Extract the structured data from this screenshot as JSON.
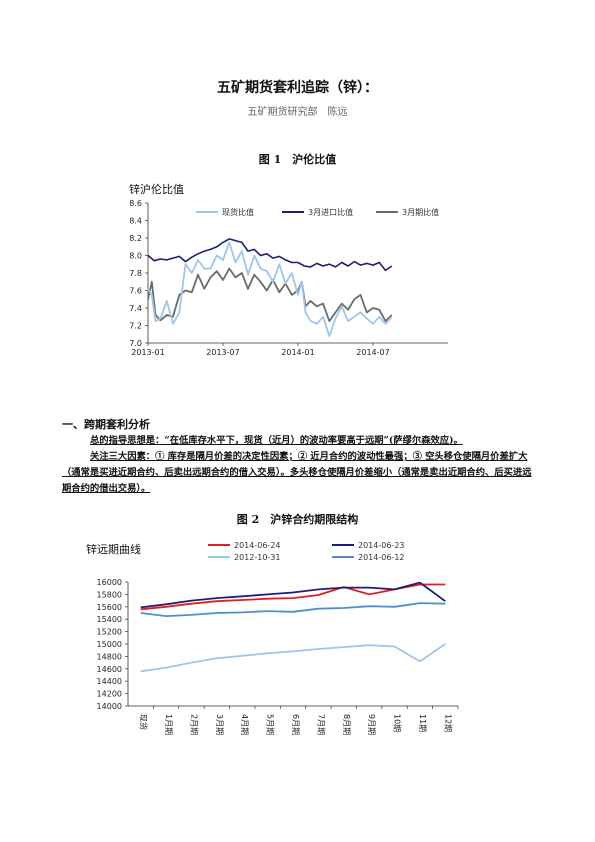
{
  "doc": {
    "title": "五矿期货套利追踪（锌）：",
    "author": "五矿期货研究部　陈远"
  },
  "figure1": {
    "caption": "图 1　沪伦比值",
    "chart_data": {
      "type": "line",
      "title": "锌沪伦比值",
      "xlabel": "",
      "ylabel": "",
      "ylim": [
        7.0,
        8.6
      ],
      "yticks": [
        "8.6",
        "8.4",
        "8.2",
        "8.0",
        "7.8",
        "7.6",
        "7.4",
        "7.2",
        "7.0"
      ],
      "xticks": [
        "2013-01",
        "2013-07",
        "2014-01",
        "2014-07"
      ],
      "xlim": [
        0,
        24
      ],
      "legend_position": "top",
      "grid": false,
      "series": [
        {
          "name": "现货比值",
          "color": "#9ec5ee",
          "x": [
            0,
            0.3,
            0.6,
            1,
            1.5,
            2,
            2.5,
            3,
            3.5,
            4,
            4.5,
            5,
            5.5,
            6,
            6.5,
            7,
            7.5,
            8,
            8.5,
            9,
            9.5,
            10,
            10.5,
            11,
            11.5,
            12,
            12.3,
            12.6,
            13,
            13.5,
            14,
            14.5,
            15,
            15.5,
            16,
            16.5,
            17,
            17.5,
            18,
            18.5,
            19,
            19.5
          ],
          "values": [
            7.62,
            7.55,
            7.25,
            7.28,
            7.48,
            7.22,
            7.35,
            7.9,
            7.8,
            7.95,
            7.85,
            7.85,
            8.0,
            7.95,
            8.15,
            7.92,
            8.05,
            7.78,
            8.0,
            7.85,
            7.82,
            7.7,
            7.9,
            7.68,
            7.8,
            7.55,
            7.7,
            7.35,
            7.25,
            7.22,
            7.3,
            7.08,
            7.28,
            7.42,
            7.25,
            7.3,
            7.35,
            7.28,
            7.22,
            7.3,
            7.22,
            7.3
          ]
        },
        {
          "name": "3月进口比值",
          "color": "#1b1f7a",
          "x": [
            0,
            0.5,
            1,
            1.5,
            2,
            2.5,
            3,
            3.5,
            4,
            4.5,
            5,
            5.5,
            6,
            6.5,
            7,
            7.5,
            8,
            8.5,
            9,
            9.5,
            10,
            10.5,
            11,
            11.5,
            12,
            12.5,
            13,
            13.5,
            14,
            14.5,
            15,
            15.5,
            16,
            16.5,
            17,
            17.5,
            18,
            18.5,
            19,
            19.5
          ],
          "values": [
            8.0,
            7.94,
            7.96,
            7.95,
            7.97,
            7.99,
            7.93,
            7.98,
            8.02,
            8.05,
            8.07,
            8.1,
            8.15,
            8.19,
            8.17,
            8.15,
            8.05,
            8.07,
            8.0,
            8.02,
            7.97,
            7.99,
            7.95,
            7.92,
            7.92,
            7.88,
            7.87,
            7.91,
            7.88,
            7.9,
            7.87,
            7.92,
            7.88,
            7.93,
            7.89,
            7.91,
            7.89,
            7.92,
            7.83,
            7.88
          ]
        },
        {
          "name": "3月期比值",
          "color": "#6b6b6b",
          "x": [
            0,
            0.3,
            0.6,
            1,
            1.5,
            2,
            2.5,
            3,
            3.5,
            4,
            4.5,
            5,
            5.5,
            6,
            6.5,
            7,
            7.5,
            8,
            8.5,
            9,
            9.5,
            10,
            10.5,
            11,
            11.5,
            12,
            12.3,
            12.6,
            13,
            13.5,
            14,
            14.5,
            15,
            15.5,
            16,
            16.5,
            17,
            17.5,
            18,
            18.5,
            19,
            19.5
          ],
          "values": [
            7.5,
            7.7,
            7.32,
            7.26,
            7.32,
            7.3,
            7.55,
            7.6,
            7.58,
            7.78,
            7.62,
            7.75,
            7.82,
            7.72,
            7.85,
            7.75,
            7.8,
            7.62,
            7.78,
            7.7,
            7.6,
            7.72,
            7.58,
            7.68,
            7.55,
            7.6,
            7.7,
            7.42,
            7.48,
            7.42,
            7.45,
            7.25,
            7.35,
            7.45,
            7.38,
            7.5,
            7.55,
            7.35,
            7.4,
            7.38,
            7.25,
            7.32
          ]
        }
      ]
    }
  },
  "section1": {
    "heading": "一、跨期套利分析",
    "para1": "总的指导思想是：“在低库存水平下，现货（近月）的波动率要高于远期”(萨缪尔森效应)。",
    "para2": "关注三大因素：① 库存是隔月价差的决定性因素；② 近月合约的波动性最强；③ 空头移仓使隔月价差扩大（通常是买进近期合约、后卖出远期合约的借入交易）。多头移仓使隔月价差缩小（通常是卖出近期合约、后买进远期合约的借出交易）。"
  },
  "figure2": {
    "caption": "图 2　沪锌合约期限结构",
    "chart_data": {
      "type": "line",
      "title": "锌远期曲线",
      "ylim": [
        14000,
        16000
      ],
      "yticks": [
        "16000",
        "15800",
        "15600",
        "15400",
        "15200",
        "15000",
        "14800",
        "14600",
        "14400",
        "14200",
        "14000"
      ],
      "categories": [
        "现货",
        "1月期",
        "2月期",
        "3月期",
        "4月期",
        "5月期",
        "6月期",
        "7月期",
        "8月期",
        "9月期",
        "10期",
        "11期",
        "12期"
      ],
      "legend_position": "top",
      "grid": false,
      "series": [
        {
          "name": "2014-06-24",
          "color": "#e02020",
          "values": [
            15560,
            15600,
            15650,
            15690,
            15710,
            15730,
            15740,
            15790,
            15920,
            15800,
            15880,
            15960,
            15960
          ]
        },
        {
          "name": "2014-06-23",
          "color": "#1b1f7a",
          "values": [
            15590,
            15640,
            15700,
            15740,
            15770,
            15800,
            15830,
            15880,
            15910,
            15910,
            15880,
            15990,
            15690
          ]
        },
        {
          "name": "2012-10-31",
          "color": "#9ec5ee",
          "values": [
            14560,
            14620,
            14700,
            14770,
            14810,
            14850,
            14880,
            14920,
            14950,
            14980,
            14960,
            14720,
            15000
          ]
        },
        {
          "name": "2014-06-12",
          "color": "#4f8fcf",
          "values": [
            15500,
            15450,
            15470,
            15500,
            15510,
            15530,
            15520,
            15570,
            15580,
            15610,
            15600,
            15660,
            15650
          ]
        }
      ]
    }
  }
}
